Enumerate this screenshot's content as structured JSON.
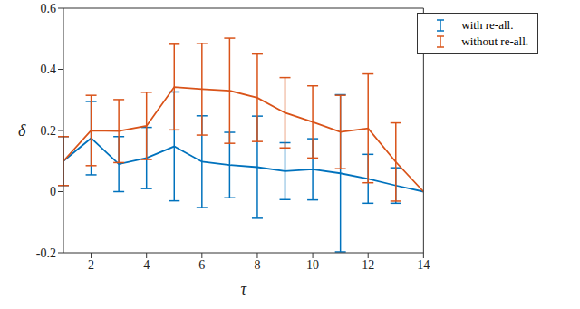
{
  "chart_data": {
    "type": "line",
    "x_label": "τ",
    "y_label": "δ",
    "x": [
      1,
      2,
      3,
      4,
      5,
      6,
      7,
      8,
      9,
      10,
      11,
      12,
      13,
      14
    ],
    "xlim": [
      1,
      14
    ],
    "xticks": [
      2,
      4,
      6,
      8,
      10,
      12,
      14
    ],
    "ylim": [
      -0.2,
      0.6
    ],
    "yticks": [
      -0.2,
      0,
      0.2,
      0.4,
      0.6
    ],
    "legend": "upper right",
    "series": [
      {
        "name": "with re-all.",
        "color": "#0072BD",
        "values": [
          0.1,
          0.175,
          0.09,
          0.11,
          0.148,
          0.098,
          0.087,
          0.08,
          0.067,
          0.073,
          0.06,
          0.042,
          0.02,
          0
        ],
        "errors": [
          0.08,
          0.12,
          0.09,
          0.1,
          0.178,
          0.15,
          0.107,
          0.167,
          0.093,
          0.1,
          0.257,
          0.08,
          0.058,
          0
        ]
      },
      {
        "name": "without re-all.",
        "color": "#D95319",
        "values": [
          0.1,
          0.2,
          0.198,
          0.215,
          0.342,
          0.335,
          0.33,
          0.307,
          0.258,
          0.228,
          0.195,
          0.207,
          0.097,
          0
        ],
        "errors": [
          0.08,
          0.115,
          0.103,
          0.11,
          0.14,
          0.15,
          0.172,
          0.143,
          0.115,
          0.118,
          0.12,
          0.178,
          0.128,
          0
        ]
      }
    ]
  }
}
